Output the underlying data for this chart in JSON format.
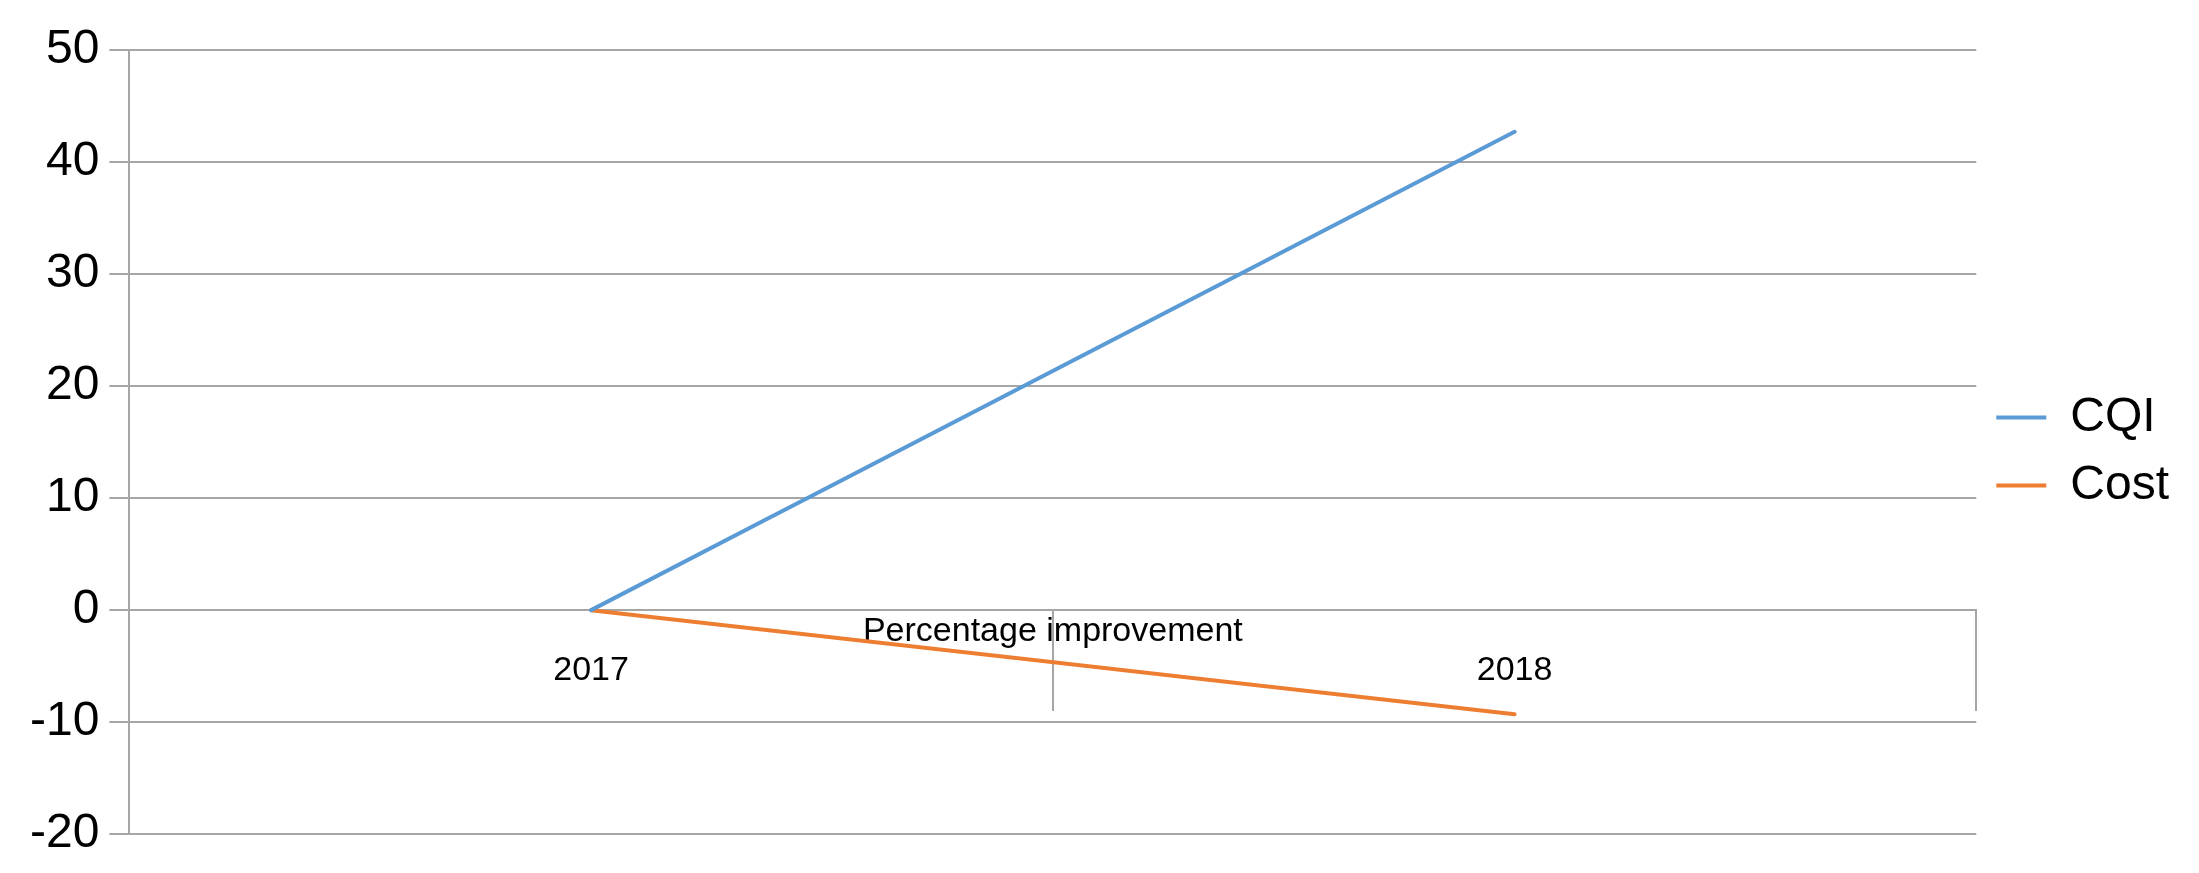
{
  "chart_data": {
    "type": "line",
    "xlabel": "Percentage improvement",
    "categories": [
      "2017",
      "2018"
    ],
    "series": [
      {
        "name": "CQI",
        "color": "#5b9bd5",
        "values": [
          0,
          42.7
        ]
      },
      {
        "name": "Cost",
        "color": "#ed7d31",
        "values": [
          0,
          -9.3
        ]
      }
    ],
    "ylim": [
      -20,
      50
    ],
    "yticks": [
      -20,
      -10,
      0,
      10,
      20,
      30,
      40,
      50
    ],
    "grid": "y",
    "legend": "right",
    "marker": "none",
    "line_style": "solid"
  }
}
